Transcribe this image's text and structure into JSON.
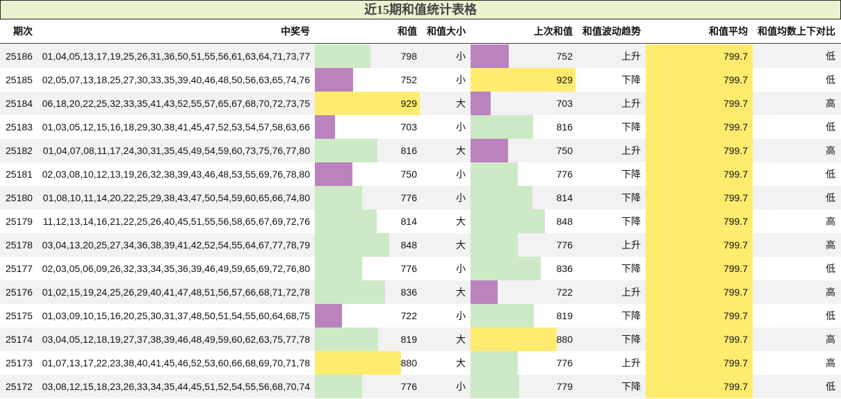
{
  "title": "近15期和值统计表格",
  "headers": {
    "period": "期次",
    "numbers": "中奖号",
    "sum": "和值",
    "size": "和值大小",
    "prev_sum": "上次和值",
    "trend": "和值波动趋势",
    "avg": "和值平均",
    "compare": "和值均数上下对比"
  },
  "colors": {
    "green": "#cde9c6",
    "purple": "#bb83bd",
    "yellow": "#ffec6e"
  },
  "scale": {
    "min": 650,
    "max": 935
  },
  "rows": [
    {
      "period": "25186",
      "numbers": "01,04,05,13,17,19,25,26,31,36,50,51,55,56,61,63,64,71,73,77",
      "sum": "798",
      "size": "小",
      "prev_sum": "752",
      "trend": "上升",
      "avg": "799.7",
      "compare": "低"
    },
    {
      "period": "25185",
      "numbers": "02,05,07,13,18,25,27,30,33,35,39,40,46,48,50,56,63,65,74,76",
      "sum": "752",
      "size": "小",
      "prev_sum": "929",
      "trend": "下降",
      "avg": "799.7",
      "compare": "低"
    },
    {
      "period": "25184",
      "numbers": "06,18,20,22,25,32,33,35,41,43,52,55,57,65,67,68,70,72,73,75",
      "sum": "929",
      "size": "大",
      "prev_sum": "703",
      "trend": "上升",
      "avg": "799.7",
      "compare": "高"
    },
    {
      "period": "25183",
      "numbers": "01,03,05,12,15,16,18,29,30,38,41,45,47,52,53,54,57,58,63,66",
      "sum": "703",
      "size": "小",
      "prev_sum": "816",
      "trend": "下降",
      "avg": "799.7",
      "compare": "低"
    },
    {
      "period": "25182",
      "numbers": "01,04,07,08,11,17,24,30,31,35,45,49,54,59,60,73,75,76,77,80",
      "sum": "816",
      "size": "大",
      "prev_sum": "750",
      "trend": "上升",
      "avg": "799.7",
      "compare": "高"
    },
    {
      "period": "25181",
      "numbers": "02,03,08,10,12,13,19,26,32,38,39,43,46,48,53,55,69,76,78,80",
      "sum": "750",
      "size": "小",
      "prev_sum": "776",
      "trend": "下降",
      "avg": "799.7",
      "compare": "低"
    },
    {
      "period": "25180",
      "numbers": "01,08,10,11,14,20,22,25,29,38,43,47,50,54,59,60,65,66,74,80",
      "sum": "776",
      "size": "小",
      "prev_sum": "814",
      "trend": "下降",
      "avg": "799.7",
      "compare": "低"
    },
    {
      "period": "25179",
      "numbers": "11,12,13,14,16,21,22,25,26,40,45,51,55,56,58,65,67,69,72,76",
      "sum": "814",
      "size": "大",
      "prev_sum": "848",
      "trend": "下降",
      "avg": "799.7",
      "compare": "高"
    },
    {
      "period": "25178",
      "numbers": "03,04,13,20,25,27,34,36,38,39,41,42,52,54,55,64,67,77,78,79",
      "sum": "848",
      "size": "大",
      "prev_sum": "776",
      "trend": "上升",
      "avg": "799.7",
      "compare": "高"
    },
    {
      "period": "25177",
      "numbers": "02,03,05,06,09,26,32,33,34,35,36,39,46,49,59,65,69,72,76,80",
      "sum": "776",
      "size": "小",
      "prev_sum": "836",
      "trend": "下降",
      "avg": "799.7",
      "compare": "低"
    },
    {
      "period": "25176",
      "numbers": "01,02,15,19,24,25,26,29,40,41,47,48,51,56,57,66,68,71,72,78",
      "sum": "836",
      "size": "大",
      "prev_sum": "722",
      "trend": "上升",
      "avg": "799.7",
      "compare": "高"
    },
    {
      "period": "25175",
      "numbers": "01,03,09,10,15,16,20,25,30,31,37,48,50,51,54,55,60,64,68,75",
      "sum": "722",
      "size": "小",
      "prev_sum": "819",
      "trend": "下降",
      "avg": "799.7",
      "compare": "低"
    },
    {
      "period": "25174",
      "numbers": "03,04,05,12,18,19,27,37,38,39,46,48,49,59,60,62,63,75,77,78",
      "sum": "819",
      "size": "大",
      "prev_sum": "880",
      "trend": "下降",
      "avg": "799.7",
      "compare": "高"
    },
    {
      "period": "25173",
      "numbers": "01,07,13,17,22,23,38,40,41,45,46,52,53,60,66,68,69,70,71,78",
      "sum": "880",
      "size": "大",
      "prev_sum": "776",
      "trend": "上升",
      "avg": "799.7",
      "compare": "高"
    },
    {
      "period": "25172",
      "numbers": "03,08,12,15,18,23,26,33,34,35,44,45,51,52,54,55,56,68,70,74",
      "sum": "776",
      "size": "小",
      "prev_sum": "779",
      "trend": "下降",
      "avg": "799.7",
      "compare": "低"
    }
  ]
}
